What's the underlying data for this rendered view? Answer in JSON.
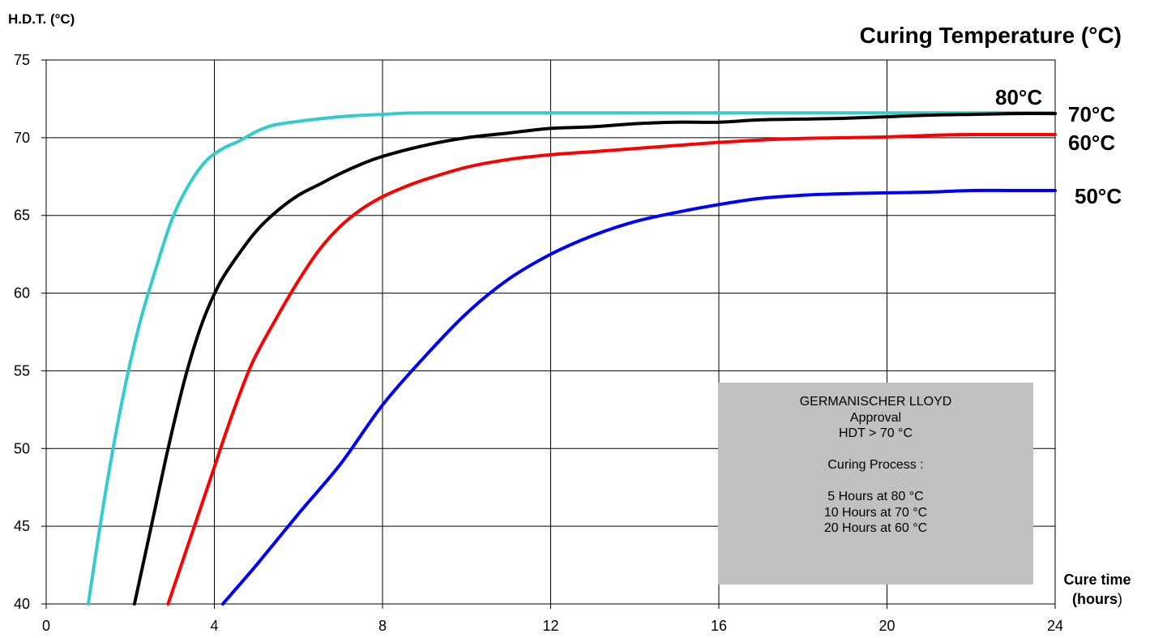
{
  "chart_data": {
    "type": "line",
    "title": "Curing Temperature (°C)",
    "ylabel": "H.D.T. (°C)",
    "xlabel": "Cure time (hours)",
    "xlabel_parts": [
      "Cure time",
      "(hours",
      ")"
    ],
    "xlim": [
      0,
      24
    ],
    "ylim": [
      40,
      75
    ],
    "xticks": [
      0,
      4,
      8,
      12,
      16,
      20,
      24
    ],
    "yticks": [
      40,
      45,
      50,
      55,
      60,
      65,
      70,
      75
    ],
    "grid": true,
    "series": [
      {
        "name": "80°C",
        "color": "#33cccc",
        "points": [
          [
            1.0,
            40
          ],
          [
            1.4,
            47
          ],
          [
            1.8,
            53
          ],
          [
            2.2,
            57.8
          ],
          [
            2.6,
            61.5
          ],
          [
            3.0,
            64.8
          ],
          [
            3.4,
            67
          ],
          [
            3.8,
            68.5
          ],
          [
            4.2,
            69.3
          ],
          [
            4.6,
            69.8
          ],
          [
            5.0,
            70.4
          ],
          [
            5.4,
            70.8
          ],
          [
            6.0,
            71.05
          ],
          [
            7.0,
            71.35
          ],
          [
            8.0,
            71.5
          ],
          [
            9.0,
            71.6
          ],
          [
            12,
            71.6
          ],
          [
            16,
            71.6
          ],
          [
            20,
            71.6
          ],
          [
            24,
            71.6
          ]
        ]
      },
      {
        "name": "70°C",
        "color": "#000000",
        "points": [
          [
            2.1,
            40
          ],
          [
            2.5,
            45
          ],
          [
            2.9,
            50
          ],
          [
            3.3,
            54.5
          ],
          [
            3.7,
            58
          ],
          [
            4.1,
            60.5
          ],
          [
            4.5,
            62.2
          ],
          [
            5.0,
            64
          ],
          [
            5.5,
            65.3
          ],
          [
            6.0,
            66.3
          ],
          [
            6.5,
            67
          ],
          [
            7.0,
            67.7
          ],
          [
            7.5,
            68.3
          ],
          [
            8.0,
            68.8
          ],
          [
            9.0,
            69.5
          ],
          [
            10.0,
            70
          ],
          [
            11,
            70.3
          ],
          [
            12,
            70.6
          ],
          [
            13,
            70.7
          ],
          [
            14,
            70.9
          ],
          [
            15,
            71
          ],
          [
            16,
            71
          ],
          [
            17,
            71.15
          ],
          [
            18,
            71.2
          ],
          [
            19,
            71.25
          ],
          [
            20,
            71.35
          ],
          [
            21,
            71.45
          ],
          [
            22,
            71.5
          ],
          [
            23,
            71.55
          ],
          [
            24,
            71.55
          ]
        ]
      },
      {
        "name": "60°C",
        "color": "#ff0000",
        "points": [
          [
            2.9,
            40
          ],
          [
            3.4,
            44
          ],
          [
            3.9,
            48
          ],
          [
            4.4,
            52
          ],
          [
            4.9,
            55.5
          ],
          [
            5.5,
            58.5
          ],
          [
            6.0,
            60.8
          ],
          [
            6.5,
            62.8
          ],
          [
            7.0,
            64.3
          ],
          [
            7.5,
            65.4
          ],
          [
            8.0,
            66.2
          ],
          [
            8.5,
            66.8
          ],
          [
            9.0,
            67.3
          ],
          [
            10.0,
            68.1
          ],
          [
            11,
            68.6
          ],
          [
            12,
            68.9
          ],
          [
            13,
            69.1
          ],
          [
            14,
            69.3
          ],
          [
            15,
            69.5
          ],
          [
            16,
            69.7
          ],
          [
            17,
            69.85
          ],
          [
            18,
            69.95
          ],
          [
            19,
            70
          ],
          [
            20,
            70.05
          ],
          [
            21,
            70.15
          ],
          [
            22,
            70.2
          ],
          [
            23,
            70.2
          ],
          [
            24,
            70.2
          ]
        ]
      },
      {
        "name": "50°C",
        "color": "#0000ff",
        "points": [
          [
            4.2,
            40
          ],
          [
            5.0,
            42.5
          ],
          [
            6.0,
            45.8
          ],
          [
            7.0,
            49
          ],
          [
            8.0,
            52.8
          ],
          [
            9.0,
            55.9
          ],
          [
            10.0,
            58.7
          ],
          [
            11,
            60.9
          ],
          [
            12,
            62.5
          ],
          [
            13,
            63.7
          ],
          [
            14,
            64.6
          ],
          [
            15,
            65.2
          ],
          [
            16,
            65.7
          ],
          [
            17,
            66.1
          ],
          [
            18,
            66.3
          ],
          [
            19,
            66.4
          ],
          [
            20,
            66.45
          ],
          [
            21,
            66.5
          ],
          [
            22,
            66.6
          ],
          [
            23,
            66.6
          ],
          [
            24,
            66.6
          ]
        ]
      }
    ]
  },
  "labels": {
    "s80": "80°C",
    "s70": "70°C",
    "s60": "60°C",
    "s50": "50°C"
  },
  "note": {
    "lines": [
      "GERMANISCHER LLOYD",
      "Approval",
      "HDT > 70 °C",
      "",
      "Curing Process :",
      "",
      "5 Hours at 80 °C",
      "10 Hours at 70 °C",
      "20 Hours at  60 °C"
    ]
  }
}
